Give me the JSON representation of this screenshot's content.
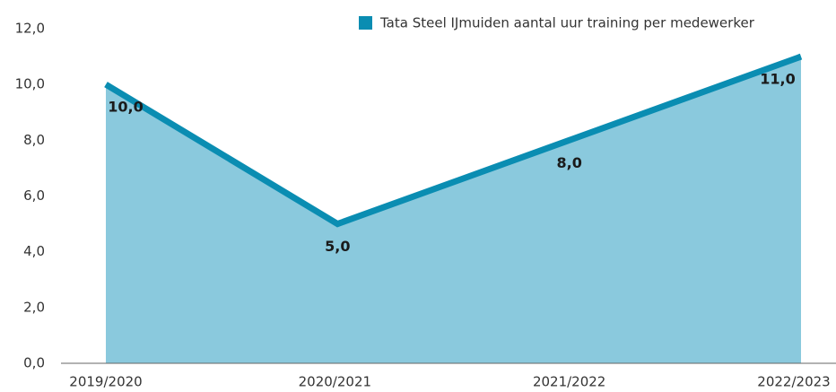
{
  "chart_data": {
    "type": "area",
    "categories": [
      "2019/2020",
      "2020/2021",
      "2021/2022",
      "2022/2023"
    ],
    "series": [
      {
        "name": "Tata Steel IJmuiden aantal uur training per medewerker",
        "color": "#0a8db2",
        "fill": "#8ac9dd",
        "values": [
          10,
          5,
          8,
          11
        ],
        "value_labels": [
          "10,0",
          "5,0",
          "8,0",
          "11,0"
        ]
      }
    ],
    "ylim": [
      0,
      12
    ],
    "yticks": [
      {
        "value": 0,
        "label": "0,0"
      },
      {
        "value": 2,
        "label": "2,0"
      },
      {
        "value": 4,
        "label": "4,0"
      },
      {
        "value": 6,
        "label": "6,0"
      },
      {
        "value": 8,
        "label": "8,0"
      },
      {
        "value": 10,
        "label": "10,0"
      },
      {
        "value": 12,
        "label": "12,0"
      }
    ],
    "legend": "top-right",
    "grid": false
  }
}
